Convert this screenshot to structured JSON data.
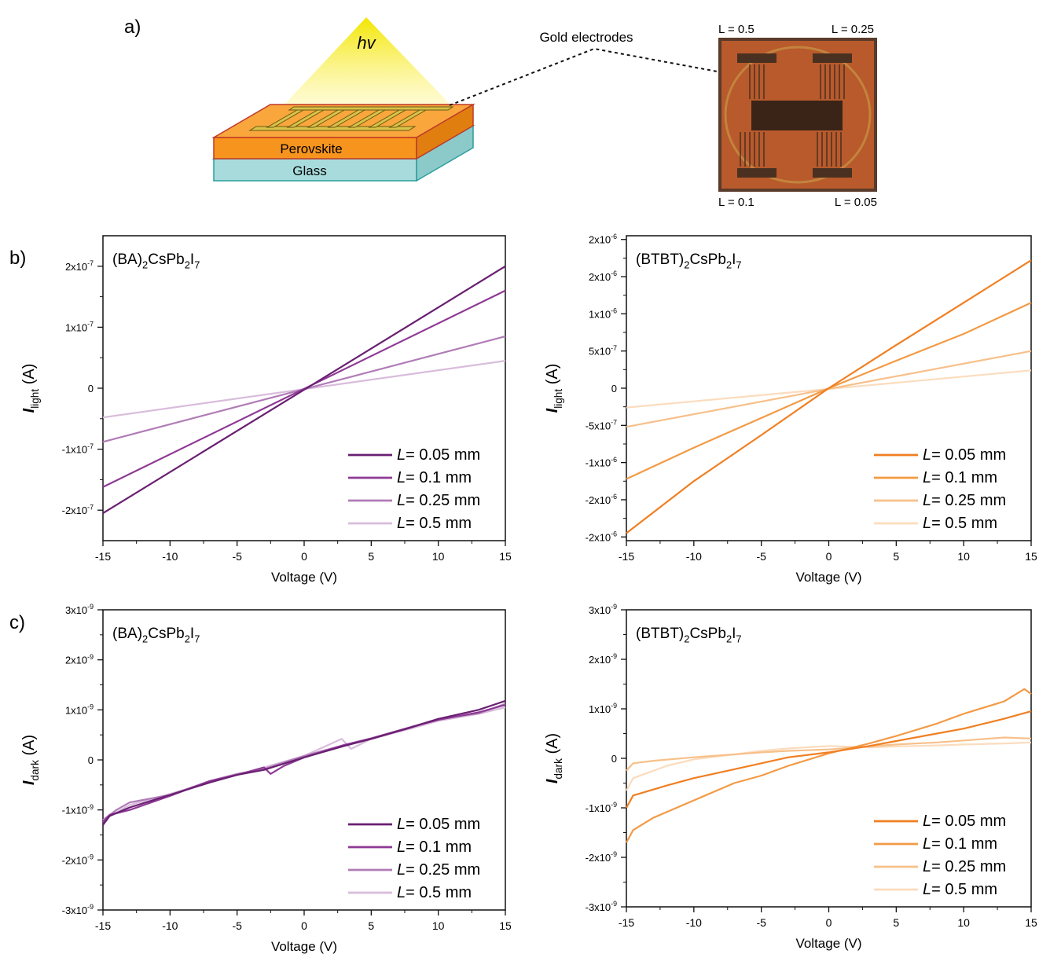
{
  "panel_labels": {
    "a": "a)",
    "b": "b)",
    "c": "c)"
  },
  "schematic": {
    "light_label": "hv",
    "perovskite_label": "Perovskite",
    "glass_label": "Glass",
    "electrodes_label": "Gold electrodes",
    "photo_labels": [
      "L = 0.5",
      "L = 0.25",
      "L = 0.1",
      "L = 0.05"
    ],
    "colors": {
      "light": "#f2e600",
      "perovskite": "#f7941d",
      "glass": "#a8dcdc",
      "gold": "#d9c24a"
    }
  },
  "chart_data": [
    {
      "id": "b-left",
      "type": "line",
      "title": "(BA)2CsPb2I7",
      "xlabel": "Voltage (V)",
      "ylabel": "Ilight (A)",
      "xlim": [
        -15,
        15
      ],
      "ylim": [
        -2.5e-07,
        2.5e-07
      ],
      "xticks": [
        "-15",
        "-10",
        "-5",
        "0",
        "5",
        "10",
        "15"
      ],
      "xtick_values": [
        -15,
        -10,
        -5,
        0,
        5,
        10,
        15
      ],
      "yticks": [
        "-2x10-7",
        "-1x10-7",
        "0",
        "1x10-7",
        "2x10-7"
      ],
      "ytick_values": [
        -2e-07,
        -1e-07,
        0,
        1e-07,
        2e-07
      ],
      "legend": "bottom-right",
      "series": [
        {
          "name": "L= 0.05 mm",
          "color": "#6a1f72",
          "x": [
            -15,
            15
          ],
          "y": [
            -2.05e-07,
            2e-07
          ]
        },
        {
          "name": "L= 0.1 mm",
          "color": "#8e3a95",
          "x": [
            -15,
            15
          ],
          "y": [
            -1.62e-07,
            1.6e-07
          ]
        },
        {
          "name": "L= 0.25 mm",
          "color": "#b07cb6",
          "x": [
            -15,
            15
          ],
          "y": [
            -8.8e-08,
            8.5e-08
          ]
        },
        {
          "name": "L= 0.5 mm",
          "color": "#d9bcdc",
          "x": [
            -15,
            15
          ],
          "y": [
            -4.8e-08,
            4.5e-08
          ]
        }
      ]
    },
    {
      "id": "b-right",
      "type": "line",
      "title": "(BTBT)2CsPb2I7",
      "xlabel": "Voltage (V)",
      "ylabel": "Ilight (A)",
      "xlim": [
        -15,
        15
      ],
      "ylim": [
        -2.05e-06,
        2.05e-06
      ],
      "xticks": [
        "-15",
        "-10",
        "-5",
        "0",
        "5",
        "10",
        "15"
      ],
      "xtick_values": [
        -15,
        -10,
        -5,
        0,
        5,
        10,
        15
      ],
      "yticks": [
        "-2x10-6",
        "-2x10-6",
        "-1x10-6",
        "-5x10-7",
        "0",
        "5x10-7",
        "1x10-6",
        "2x10-6",
        "2x10-6"
      ],
      "ytick_values": [
        -2e-06,
        -1.5e-06,
        -1e-06,
        -5e-07,
        0,
        5e-07,
        1e-06,
        1.5e-06,
        2e-06
      ],
      "legend": "bottom-right",
      "series": [
        {
          "name": "L= 0.05 mm",
          "color": "#f07f22",
          "x": [
            -15,
            -10,
            -5,
            0,
            5,
            10,
            15
          ],
          "y": [
            -1.95e-06,
            -1.25e-06,
            -6.3e-07,
            0,
            5.8e-07,
            1.15e-06,
            1.72e-06
          ]
        },
        {
          "name": "L= 0.1 mm",
          "color": "#f39a45",
          "x": [
            -15,
            -10,
            -5,
            0,
            5,
            10,
            15
          ],
          "y": [
            -1.22e-06,
            -8e-07,
            -4e-07,
            0,
            3.7e-07,
            7.3e-07,
            1.15e-06
          ]
        },
        {
          "name": "L= 0.25 mm",
          "color": "#f7c08a",
          "x": [
            -15,
            15
          ],
          "y": [
            -5.2e-07,
            5e-07
          ]
        },
        {
          "name": "L= 0.5 mm",
          "color": "#fbdcbd",
          "x": [
            -15,
            15
          ],
          "y": [
            -2.6e-07,
            2.4e-07
          ]
        }
      ]
    },
    {
      "id": "c-left",
      "type": "line",
      "title": "(BA)2CsPb2I7",
      "xlabel": "Voltage (V)",
      "ylabel": "Idark (A)",
      "xlim": [
        -15,
        15
      ],
      "ylim": [
        -3e-09,
        3e-09
      ],
      "xticks": [
        "-15",
        "-10",
        "-5",
        "0",
        "5",
        "10",
        "15"
      ],
      "xtick_values": [
        -15,
        -10,
        -5,
        0,
        5,
        10,
        15
      ],
      "yticks": [
        "-3x10-9",
        "-2x10-9",
        "-1x10-9",
        "0",
        "1x10-9",
        "2x10-9",
        "3x10-9"
      ],
      "ytick_values": [
        -3e-09,
        -2e-09,
        -1e-09,
        0,
        1e-09,
        2e-09,
        3e-09
      ],
      "legend": "bottom-right",
      "series": [
        {
          "name": "L= 0.05 mm",
          "color": "#6a1f72",
          "x": [
            -15,
            -14.5,
            -13,
            -10,
            -7,
            -5,
            -3,
            0,
            3,
            5,
            8,
            10,
            13,
            15
          ],
          "y": [
            -1.3e-09,
            -1.12e-09,
            -9.5e-10,
            -7e-10,
            -4.5e-10,
            -3e-10,
            -2e-10,
            5e-11,
            2.8e-10,
            4.2e-10,
            6.5e-10,
            8.2e-10,
            1e-09,
            1.18e-09
          ]
        },
        {
          "name": "L= 0.1 mm",
          "color": "#8e3a95",
          "x": [
            -15,
            -14.5,
            -13,
            -10,
            -7,
            -5,
            -3,
            -2.5,
            -1.5,
            0,
            3,
            5,
            8,
            10,
            13,
            15
          ],
          "y": [
            -1.25e-09,
            -1.1e-09,
            -1e-09,
            -7.2e-10,
            -4.2e-10,
            -3e-10,
            -1.5e-10,
            -2.8e-10,
            -1.2e-10,
            5e-11,
            3e-10,
            4.3e-10,
            6.6e-10,
            8e-10,
            9.5e-10,
            1.1e-09
          ]
        },
        {
          "name": "L= 0.25 mm",
          "color": "#b07cb6",
          "x": [
            -15,
            -14,
            -13,
            -10,
            -7,
            -5,
            -3,
            0,
            3,
            5,
            8,
            10,
            13,
            15
          ],
          "y": [
            -1.2e-09,
            -1e-09,
            -8.5e-10,
            -7e-10,
            -4.2e-10,
            -2.8e-10,
            -1.8e-10,
            8e-11,
            3e-10,
            4.2e-10,
            6.6e-10,
            8.2e-10,
            9.3e-10,
            1.12e-09
          ]
        },
        {
          "name": "L= 0.5 mm",
          "color": "#d9bcdc",
          "x": [
            -15,
            -13,
            -10,
            -7,
            -5,
            -3,
            0,
            2.8,
            3.5,
            5,
            8,
            10,
            13,
            15
          ],
          "y": [
            -1.2e-09,
            -9e-10,
            -6.8e-10,
            -4.5e-10,
            -3e-10,
            -1.5e-10,
            8e-11,
            4.2e-10,
            2.2e-10,
            4.2e-10,
            6.3e-10,
            7.8e-10,
            9.2e-10,
            1.05e-09
          ]
        }
      ]
    },
    {
      "id": "c-right",
      "type": "line",
      "title": "(BTBT)2CsPb2I7",
      "xlabel": "Voltage (V)",
      "ylabel": "Idark (A)",
      "xlim": [
        -15,
        15
      ],
      "ylim": [
        -3e-09,
        3e-09
      ],
      "xticks": [
        "-15",
        "-10",
        "-5",
        "0",
        "5",
        "10",
        "15"
      ],
      "xtick_values": [
        -15,
        -10,
        -5,
        0,
        5,
        10,
        15
      ],
      "yticks": [
        "-3x10-9",
        "-2x10-9",
        "-1x10-9",
        "0",
        "1x10-9",
        "2x10-9",
        "3x10-9"
      ],
      "ytick_values": [
        -3e-09,
        -2e-09,
        -1e-09,
        0,
        1e-09,
        2e-09,
        3e-09
      ],
      "legend": "bottom-right",
      "series": [
        {
          "name": "L= 0.05 mm",
          "color": "#f07f22",
          "x": [
            -15,
            -14.5,
            -12,
            -10,
            -7,
            -5,
            -3,
            0,
            3,
            5,
            8,
            10,
            13,
            15
          ],
          "y": [
            -1e-09,
            -7.5e-10,
            -5.5e-10,
            -4e-10,
            -2.2e-10,
            -1e-10,
            2e-11,
            1.2e-10,
            2.5e-10,
            3.5e-10,
            5e-10,
            6e-10,
            8e-10,
            9.5e-10
          ]
        },
        {
          "name": "L= 0.1 mm",
          "color": "#f39a45",
          "x": [
            -15,
            -14.5,
            -13,
            -10,
            -7,
            -5,
            -3,
            0,
            3,
            5,
            8,
            10,
            13,
            14.5,
            15
          ],
          "y": [
            -1.7e-09,
            -1.45e-09,
            -1.2e-09,
            -8.5e-10,
            -5e-10,
            -3.5e-10,
            -1.5e-10,
            1e-10,
            3e-10,
            4.5e-10,
            7e-10,
            9e-10,
            1.15e-09,
            1.4e-09,
            1.3e-09
          ]
        },
        {
          "name": "L= 0.25 mm",
          "color": "#f7c08a",
          "x": [
            -15,
            -14.5,
            -13,
            -10,
            -7,
            -5,
            -3,
            0,
            3,
            5,
            8,
            10,
            13,
            15
          ],
          "y": [
            -2.5e-10,
            -1e-10,
            -5e-11,
            2e-11,
            8e-11,
            1.2e-10,
            1.5e-10,
            1.8e-10,
            2.4e-10,
            2.8e-10,
            3.2e-10,
            3.6e-10,
            4.2e-10,
            4e-10
          ]
        },
        {
          "name": "L= 0.5 mm",
          "color": "#fbdcbd",
          "x": [
            -15,
            -14.5,
            -12,
            -10,
            -7,
            -5,
            -3,
            0,
            3,
            5,
            8,
            10,
            13,
            15
          ],
          "y": [
            -6.5e-10,
            -4e-10,
            -1.5e-10,
            -2e-11,
            8e-11,
            1.5e-10,
            2e-10,
            2.5e-10,
            2.2e-10,
            2.4e-10,
            2.6e-10,
            2.8e-10,
            3e-10,
            3.2e-10
          ]
        }
      ]
    }
  ]
}
